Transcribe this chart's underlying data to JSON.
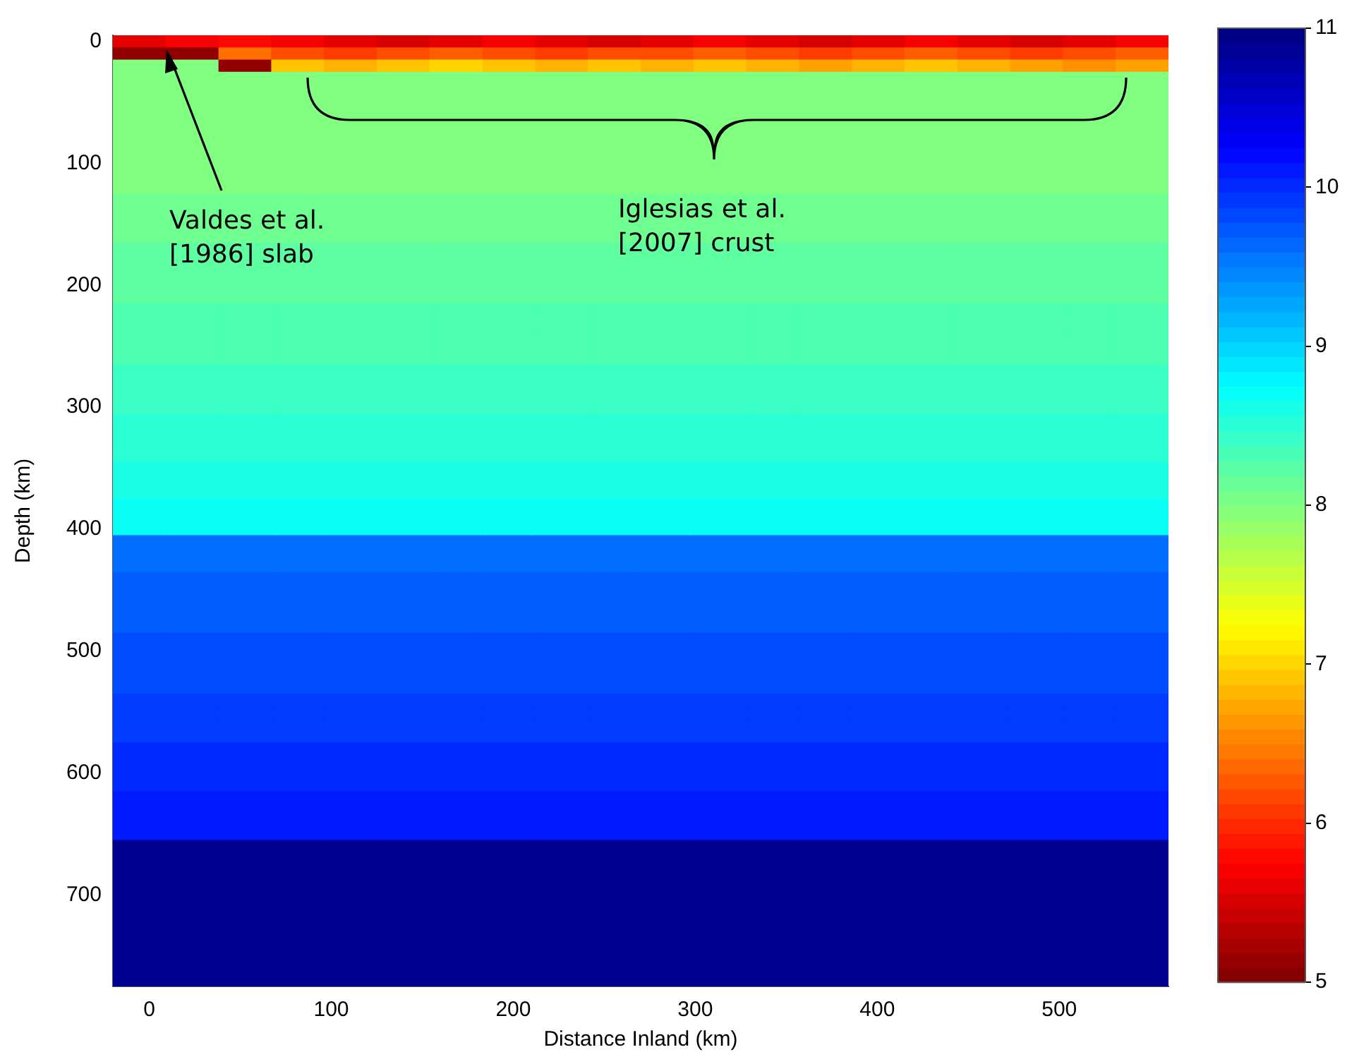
{
  "chart_data": {
    "type": "heatmap",
    "xlabel": "Distance Inland (km)",
    "ylabel": "Depth (km)",
    "x": [
      -5.5,
      23.5,
      52.5,
      81.5,
      110.5,
      139.5,
      168.5,
      197.5,
      226.5,
      255.5,
      284.5,
      313.5,
      342.5,
      371.5,
      400.5,
      429.5,
      458.5,
      487.5,
      516.5,
      545.5
    ],
    "xlim": [
      -20,
      560
    ],
    "xticks": [
      0,
      100,
      200,
      300,
      400,
      500
    ],
    "y_categories": [
      "0",
      null,
      null,
      null,
      null,
      null,
      null,
      null,
      null,
      null,
      "100",
      null,
      null,
      null,
      null,
      null,
      null,
      null,
      null,
      null,
      "200",
      null,
      null,
      null,
      null,
      null,
      null,
      null,
      null,
      null,
      "300",
      null,
      null,
      null,
      null,
      null,
      null,
      null,
      null,
      null,
      "400",
      null,
      null,
      null,
      null,
      null,
      null,
      null,
      null,
      null,
      "500",
      null,
      null,
      null,
      null,
      null,
      null,
      null,
      null,
      null,
      "600",
      null,
      null,
      null,
      null,
      null,
      null,
      null,
      null,
      null,
      "700",
      null,
      null,
      null,
      null,
      null,
      null,
      null
    ],
    "cells": [
      [
        5.6,
        5.7,
        5.8,
        5.7,
        5.6,
        5.5,
        5.6,
        5.7,
        5.6,
        5.5,
        5.6,
        5.7,
        5.6,
        5.5,
        5.6,
        5.7,
        5.6,
        5.5,
        5.6,
        5.7
      ],
      [
        5.1,
        5.1,
        6.4,
        6.2,
        6.1,
        6.2,
        6.3,
        6.2,
        6.1,
        6.2,
        6.2,
        6.3,
        6.2,
        6.1,
        6.2,
        6.3,
        6.2,
        6.1,
        6.2,
        6.3
      ],
      [
        8.0,
        8.0,
        5.1,
        6.9,
        6.8,
        6.9,
        7.0,
        6.9,
        6.8,
        6.9,
        6.8,
        6.9,
        6.8,
        6.7,
        6.8,
        6.9,
        6.8,
        6.7,
        6.6,
        6.7
      ],
      [
        8.0,
        8.0,
        8.0,
        8.0,
        8.0,
        8.0,
        8.0,
        8.0,
        8.0,
        8.0,
        8.0,
        8.0,
        8.0,
        8.0,
        8.0,
        8.0,
        8.0,
        8.0,
        8.0,
        8.0
      ],
      [
        8.0,
        8.0,
        8.0,
        8.0,
        8.0,
        8.0,
        8.0,
        8.0,
        8.0,
        8.0,
        8.0,
        8.0,
        8.0,
        8.0,
        8.0,
        8.0,
        8.0,
        8.0,
        8.0,
        8.0
      ],
      [
        8.0,
        8.0,
        8.0,
        8.0,
        8.0,
        8.0,
        8.0,
        8.0,
        8.0,
        8.0,
        8.0,
        8.0,
        8.0,
        8.0,
        8.0,
        8.0,
        8.0,
        8.0,
        8.0,
        8.0
      ],
      [
        8.0,
        8.0,
        8.0,
        8.0,
        8.0,
        8.0,
        8.0,
        8.0,
        8.0,
        8.0,
        8.0,
        8.0,
        8.0,
        8.0,
        8.0,
        8.0,
        8.0,
        8.0,
        8.0,
        8.0
      ],
      [
        8.0,
        8.0,
        8.0,
        8.0,
        8.0,
        8.0,
        8.0,
        8.0,
        8.0,
        8.0,
        8.0,
        8.0,
        8.0,
        8.0,
        8.0,
        8.0,
        8.0,
        8.0,
        8.0,
        8.0
      ],
      [
        8.0,
        8.0,
        8.0,
        8.0,
        8.0,
        8.0,
        8.0,
        8.0,
        8.0,
        8.0,
        8.0,
        8.0,
        8.0,
        8.0,
        8.0,
        8.0,
        8.0,
        8.0,
        8.0,
        8.0
      ],
      [
        8.0,
        8.0,
        8.0,
        8.0,
        8.0,
        8.0,
        8.0,
        8.0,
        8.0,
        8.0,
        8.0,
        8.0,
        8.0,
        8.0,
        8.0,
        8.0,
        8.0,
        8.0,
        8.0,
        8.0
      ],
      [
        8.0,
        8.0,
        8.0,
        8.0,
        8.0,
        8.0,
        8.0,
        8.0,
        8.0,
        8.0,
        8.0,
        8.0,
        8.0,
        8.0,
        8.0,
        8.0,
        8.0,
        8.0,
        8.0,
        8.0
      ],
      [
        8.0,
        8.0,
        8.0,
        8.0,
        8.0,
        8.0,
        8.0,
        8.0,
        8.0,
        8.0,
        8.0,
        8.0,
        8.0,
        8.0,
        8.0,
        8.0,
        8.0,
        8.0,
        8.0,
        8.0
      ],
      [
        8.0,
        8.0,
        8.0,
        8.0,
        8.0,
        8.0,
        8.0,
        8.0,
        8.0,
        8.0,
        8.0,
        8.0,
        8.0,
        8.0,
        8.0,
        8.0,
        8.0,
        8.0,
        8.0,
        8.0
      ],
      [
        8.1,
        8.1,
        8.1,
        8.1,
        8.1,
        8.1,
        8.1,
        8.1,
        8.1,
        8.1,
        8.1,
        8.1,
        8.1,
        8.1,
        8.1,
        8.1,
        8.1,
        8.1,
        8.1,
        8.1
      ],
      [
        8.1,
        8.1,
        8.1,
        8.1,
        8.1,
        8.1,
        8.1,
        8.1,
        8.1,
        8.1,
        8.1,
        8.1,
        8.1,
        8.1,
        8.1,
        8.1,
        8.1,
        8.1,
        8.1,
        8.1
      ],
      [
        8.1,
        8.1,
        8.1,
        8.1,
        8.1,
        8.1,
        8.1,
        8.1,
        8.1,
        8.1,
        8.1,
        8.1,
        8.1,
        8.1,
        8.1,
        8.1,
        8.1,
        8.1,
        8.1,
        8.1
      ],
      [
        8.1,
        8.1,
        8.1,
        8.1,
        8.1,
        8.1,
        8.1,
        8.1,
        8.1,
        8.1,
        8.1,
        8.1,
        8.1,
        8.1,
        8.1,
        8.1,
        8.1,
        8.1,
        8.1,
        8.1
      ],
      [
        8.2,
        8.2,
        8.2,
        8.2,
        8.2,
        8.2,
        8.2,
        8.2,
        8.2,
        8.2,
        8.2,
        8.2,
        8.2,
        8.2,
        8.2,
        8.2,
        8.2,
        8.2,
        8.2,
        8.2
      ],
      [
        8.2,
        8.2,
        8.2,
        8.2,
        8.2,
        8.2,
        8.2,
        8.2,
        8.2,
        8.2,
        8.2,
        8.2,
        8.2,
        8.2,
        8.2,
        8.2,
        8.2,
        8.2,
        8.2,
        8.2
      ],
      [
        8.2,
        8.2,
        8.2,
        8.2,
        8.2,
        8.2,
        8.2,
        8.2,
        8.2,
        8.2,
        8.2,
        8.2,
        8.2,
        8.2,
        8.2,
        8.2,
        8.2,
        8.2,
        8.2,
        8.2
      ],
      [
        8.2,
        8.2,
        8.2,
        8.2,
        8.2,
        8.2,
        8.2,
        8.2,
        8.2,
        8.2,
        8.2,
        8.2,
        8.2,
        8.2,
        8.2,
        8.2,
        8.2,
        8.2,
        8.2,
        8.2
      ],
      [
        8.2,
        8.2,
        8.2,
        8.2,
        8.2,
        8.2,
        8.2,
        8.2,
        8.2,
        8.2,
        8.2,
        8.2,
        8.2,
        8.2,
        8.2,
        8.2,
        8.2,
        8.2,
        8.2,
        8.2
      ],
      [
        8.3,
        8.3,
        8.3,
        8.3,
        8.3,
        8.3,
        8.3,
        8.3,
        8.3,
        8.3,
        8.3,
        8.3,
        8.3,
        8.3,
        8.3,
        8.3,
        8.3,
        8.3,
        8.3,
        8.3
      ],
      [
        8.3,
        8.3,
        8.3,
        8.3,
        8.3,
        8.3,
        8.3,
        8.3,
        8.3,
        8.3,
        8.3,
        8.3,
        8.3,
        8.3,
        8.3,
        8.3,
        8.3,
        8.3,
        8.3,
        8.3
      ],
      [
        8.3,
        8.3,
        8.3,
        8.3,
        8.3,
        8.3,
        8.3,
        8.3,
        8.3,
        8.3,
        8.3,
        8.3,
        8.3,
        8.3,
        8.3,
        8.3,
        8.3,
        8.3,
        8.3,
        8.3
      ],
      [
        8.3,
        8.3,
        8.3,
        8.3,
        8.3,
        8.3,
        8.3,
        8.3,
        8.3,
        8.3,
        8.3,
        8.3,
        8.3,
        8.3,
        8.3,
        8.3,
        8.3,
        8.3,
        8.3,
        8.3
      ],
      [
        8.3,
        8.3,
        8.3,
        8.3,
        8.3,
        8.3,
        8.3,
        8.3,
        8.3,
        8.3,
        8.3,
        8.3,
        8.3,
        8.3,
        8.3,
        8.3,
        8.3,
        8.3,
        8.3,
        8.3
      ],
      [
        8.4,
        8.4,
        8.4,
        8.4,
        8.4,
        8.4,
        8.4,
        8.4,
        8.4,
        8.4,
        8.4,
        8.4,
        8.4,
        8.4,
        8.4,
        8.4,
        8.4,
        8.4,
        8.4,
        8.4
      ],
      [
        8.4,
        8.4,
        8.4,
        8.4,
        8.4,
        8.4,
        8.4,
        8.4,
        8.4,
        8.4,
        8.4,
        8.4,
        8.4,
        8.4,
        8.4,
        8.4,
        8.4,
        8.4,
        8.4,
        8.4
      ],
      [
        8.4,
        8.4,
        8.4,
        8.4,
        8.4,
        8.4,
        8.4,
        8.4,
        8.4,
        8.4,
        8.4,
        8.4,
        8.4,
        8.4,
        8.4,
        8.4,
        8.4,
        8.4,
        8.4,
        8.4
      ],
      [
        8.4,
        8.4,
        8.4,
        8.4,
        8.4,
        8.4,
        8.4,
        8.4,
        8.4,
        8.4,
        8.4,
        8.4,
        8.4,
        8.4,
        8.4,
        8.4,
        8.4,
        8.4,
        8.4,
        8.4
      ],
      [
        8.5,
        8.5,
        8.5,
        8.5,
        8.5,
        8.5,
        8.5,
        8.5,
        8.5,
        8.5,
        8.5,
        8.5,
        8.5,
        8.5,
        8.5,
        8.5,
        8.5,
        8.5,
        8.5,
        8.5
      ],
      [
        8.5,
        8.5,
        8.5,
        8.5,
        8.5,
        8.5,
        8.5,
        8.5,
        8.5,
        8.5,
        8.5,
        8.5,
        8.5,
        8.5,
        8.5,
        8.5,
        8.5,
        8.5,
        8.5,
        8.5
      ],
      [
        8.5,
        8.5,
        8.5,
        8.5,
        8.5,
        8.5,
        8.5,
        8.5,
        8.5,
        8.5,
        8.5,
        8.5,
        8.5,
        8.5,
        8.5,
        8.5,
        8.5,
        8.5,
        8.5,
        8.5
      ],
      [
        8.5,
        8.5,
        8.5,
        8.5,
        8.5,
        8.5,
        8.5,
        8.5,
        8.5,
        8.5,
        8.5,
        8.5,
        8.5,
        8.5,
        8.5,
        8.5,
        8.5,
        8.5,
        8.5,
        8.5
      ],
      [
        8.6,
        8.6,
        8.6,
        8.6,
        8.6,
        8.6,
        8.6,
        8.6,
        8.6,
        8.6,
        8.6,
        8.6,
        8.6,
        8.6,
        8.6,
        8.6,
        8.6,
        8.6,
        8.6,
        8.6
      ],
      [
        8.6,
        8.6,
        8.6,
        8.6,
        8.6,
        8.6,
        8.6,
        8.6,
        8.6,
        8.6,
        8.6,
        8.6,
        8.6,
        8.6,
        8.6,
        8.6,
        8.6,
        8.6,
        8.6,
        8.6
      ],
      [
        8.6,
        8.6,
        8.6,
        8.6,
        8.6,
        8.6,
        8.6,
        8.6,
        8.6,
        8.6,
        8.6,
        8.6,
        8.6,
        8.6,
        8.6,
        8.6,
        8.6,
        8.6,
        8.6,
        8.6
      ],
      [
        8.7,
        8.7,
        8.7,
        8.7,
        8.7,
        8.7,
        8.7,
        8.7,
        8.7,
        8.7,
        8.7,
        8.7,
        8.7,
        8.7,
        8.7,
        8.7,
        8.7,
        8.7,
        8.7,
        8.7
      ],
      [
        8.7,
        8.7,
        8.7,
        8.7,
        8.7,
        8.7,
        8.7,
        8.7,
        8.7,
        8.7,
        8.7,
        8.7,
        8.7,
        8.7,
        8.7,
        8.7,
        8.7,
        8.7,
        8.7,
        8.7
      ],
      [
        8.7,
        8.7,
        8.7,
        8.7,
        8.7,
        8.7,
        8.7,
        8.7,
        8.7,
        8.7,
        8.7,
        8.7,
        8.7,
        8.7,
        8.7,
        8.7,
        8.7,
        8.7,
        8.7,
        8.7
      ],
      [
        9.6,
        9.6,
        9.6,
        9.6,
        9.6,
        9.6,
        9.6,
        9.6,
        9.6,
        9.6,
        9.6,
        9.6,
        9.6,
        9.6,
        9.6,
        9.6,
        9.6,
        9.6,
        9.6,
        9.6
      ],
      [
        9.6,
        9.6,
        9.6,
        9.6,
        9.6,
        9.6,
        9.6,
        9.6,
        9.6,
        9.6,
        9.6,
        9.6,
        9.6,
        9.6,
        9.6,
        9.6,
        9.6,
        9.6,
        9.6,
        9.6
      ],
      [
        9.6,
        9.6,
        9.6,
        9.6,
        9.6,
        9.6,
        9.6,
        9.6,
        9.6,
        9.6,
        9.6,
        9.6,
        9.6,
        9.6,
        9.6,
        9.6,
        9.6,
        9.6,
        9.6,
        9.6
      ],
      [
        9.7,
        9.7,
        9.7,
        9.7,
        9.7,
        9.7,
        9.7,
        9.7,
        9.7,
        9.7,
        9.7,
        9.7,
        9.7,
        9.7,
        9.7,
        9.7,
        9.7,
        9.7,
        9.7,
        9.7
      ],
      [
        9.7,
        9.7,
        9.7,
        9.7,
        9.7,
        9.7,
        9.7,
        9.7,
        9.7,
        9.7,
        9.7,
        9.7,
        9.7,
        9.7,
        9.7,
        9.7,
        9.7,
        9.7,
        9.7,
        9.7
      ],
      [
        9.7,
        9.7,
        9.7,
        9.7,
        9.7,
        9.7,
        9.7,
        9.7,
        9.7,
        9.7,
        9.7,
        9.7,
        9.7,
        9.7,
        9.7,
        9.7,
        9.7,
        9.7,
        9.7,
        9.7
      ],
      [
        9.7,
        9.7,
        9.7,
        9.7,
        9.7,
        9.7,
        9.7,
        9.7,
        9.7,
        9.7,
        9.7,
        9.7,
        9.7,
        9.7,
        9.7,
        9.7,
        9.7,
        9.7,
        9.7,
        9.7
      ],
      [
        9.7,
        9.7,
        9.7,
        9.7,
        9.7,
        9.7,
        9.7,
        9.7,
        9.7,
        9.7,
        9.7,
        9.7,
        9.7,
        9.7,
        9.7,
        9.7,
        9.7,
        9.7,
        9.7,
        9.7
      ],
      [
        9.8,
        9.8,
        9.8,
        9.8,
        9.8,
        9.8,
        9.8,
        9.8,
        9.8,
        9.8,
        9.8,
        9.8,
        9.8,
        9.8,
        9.8,
        9.8,
        9.8,
        9.8,
        9.8,
        9.8
      ],
      [
        9.8,
        9.8,
        9.8,
        9.8,
        9.8,
        9.8,
        9.8,
        9.8,
        9.8,
        9.8,
        9.8,
        9.8,
        9.8,
        9.8,
        9.8,
        9.8,
        9.8,
        9.8,
        9.8,
        9.8
      ],
      [
        9.8,
        9.8,
        9.8,
        9.8,
        9.8,
        9.8,
        9.8,
        9.8,
        9.8,
        9.8,
        9.8,
        9.8,
        9.8,
        9.8,
        9.8,
        9.8,
        9.8,
        9.8,
        9.8,
        9.8
      ],
      [
        9.8,
        9.8,
        9.8,
        9.8,
        9.8,
        9.8,
        9.8,
        9.8,
        9.8,
        9.8,
        9.8,
        9.8,
        9.8,
        9.8,
        9.8,
        9.8,
        9.8,
        9.8,
        9.8,
        9.8
      ],
      [
        9.8,
        9.8,
        9.8,
        9.8,
        9.8,
        9.8,
        9.8,
        9.8,
        9.8,
        9.8,
        9.8,
        9.8,
        9.8,
        9.8,
        9.8,
        9.8,
        9.8,
        9.8,
        9.8,
        9.8
      ],
      [
        9.9,
        9.9,
        9.9,
        9.9,
        9.9,
        9.9,
        9.9,
        9.9,
        9.9,
        9.9,
        9.9,
        9.9,
        9.9,
        9.9,
        9.9,
        9.9,
        9.9,
        9.9,
        9.9,
        9.9
      ],
      [
        9.9,
        9.9,
        9.9,
        9.9,
        9.9,
        9.9,
        9.9,
        9.9,
        9.9,
        9.9,
        9.9,
        9.9,
        9.9,
        9.9,
        9.9,
        9.9,
        9.9,
        9.9,
        9.9,
        9.9
      ],
      [
        9.9,
        9.9,
        9.9,
        9.9,
        9.9,
        9.9,
        9.9,
        9.9,
        9.9,
        9.9,
        9.9,
        9.9,
        9.9,
        9.9,
        9.9,
        9.9,
        9.9,
        9.9,
        9.9,
        9.9
      ],
      [
        9.9,
        9.9,
        9.9,
        9.9,
        9.9,
        9.9,
        9.9,
        9.9,
        9.9,
        9.9,
        9.9,
        9.9,
        9.9,
        9.9,
        9.9,
        9.9,
        9.9,
        9.9,
        9.9,
        9.9
      ],
      [
        10.0,
        10.0,
        10.0,
        10.0,
        10.0,
        10.0,
        10.0,
        10.0,
        10.0,
        10.0,
        10.0,
        10.0,
        10.0,
        10.0,
        10.0,
        10.0,
        10.0,
        10.0,
        10.0,
        10.0
      ],
      [
        10.0,
        10.0,
        10.0,
        10.0,
        10.0,
        10.0,
        10.0,
        10.0,
        10.0,
        10.0,
        10.0,
        10.0,
        10.0,
        10.0,
        10.0,
        10.0,
        10.0,
        10.0,
        10.0,
        10.0
      ],
      [
        10.0,
        10.0,
        10.0,
        10.0,
        10.0,
        10.0,
        10.0,
        10.0,
        10.0,
        10.0,
        10.0,
        10.0,
        10.0,
        10.0,
        10.0,
        10.0,
        10.0,
        10.0,
        10.0,
        10.0
      ],
      [
        10.0,
        10.0,
        10.0,
        10.0,
        10.0,
        10.0,
        10.0,
        10.0,
        10.0,
        10.0,
        10.0,
        10.0,
        10.0,
        10.0,
        10.0,
        10.0,
        10.0,
        10.0,
        10.0,
        10.0
      ],
      [
        10.1,
        10.1,
        10.1,
        10.1,
        10.1,
        10.1,
        10.1,
        10.1,
        10.1,
        10.1,
        10.1,
        10.1,
        10.1,
        10.1,
        10.1,
        10.1,
        10.1,
        10.1,
        10.1,
        10.1
      ],
      [
        10.1,
        10.1,
        10.1,
        10.1,
        10.1,
        10.1,
        10.1,
        10.1,
        10.1,
        10.1,
        10.1,
        10.1,
        10.1,
        10.1,
        10.1,
        10.1,
        10.1,
        10.1,
        10.1,
        10.1
      ],
      [
        10.1,
        10.1,
        10.1,
        10.1,
        10.1,
        10.1,
        10.1,
        10.1,
        10.1,
        10.1,
        10.1,
        10.1,
        10.1,
        10.1,
        10.1,
        10.1,
        10.1,
        10.1,
        10.1,
        10.1
      ],
      [
        10.1,
        10.1,
        10.1,
        10.1,
        10.1,
        10.1,
        10.1,
        10.1,
        10.1,
        10.1,
        10.1,
        10.1,
        10.1,
        10.1,
        10.1,
        10.1,
        10.1,
        10.1,
        10.1,
        10.1
      ],
      [
        10.9,
        10.9,
        10.9,
        10.9,
        10.9,
        10.9,
        10.9,
        10.9,
        10.9,
        10.9,
        10.9,
        10.9,
        10.9,
        10.9,
        10.9,
        10.9,
        10.9,
        10.9,
        10.9,
        10.9
      ],
      [
        10.9,
        10.9,
        10.9,
        10.9,
        10.9,
        10.9,
        10.9,
        10.9,
        10.9,
        10.9,
        10.9,
        10.9,
        10.9,
        10.9,
        10.9,
        10.9,
        10.9,
        10.9,
        10.9,
        10.9
      ],
      [
        10.9,
        10.9,
        10.9,
        10.9,
        10.9,
        10.9,
        10.9,
        10.9,
        10.9,
        10.9,
        10.9,
        10.9,
        10.9,
        10.9,
        10.9,
        10.9,
        10.9,
        10.9,
        10.9,
        10.9
      ],
      [
        10.9,
        10.9,
        10.9,
        10.9,
        10.9,
        10.9,
        10.9,
        10.9,
        10.9,
        10.9,
        10.9,
        10.9,
        10.9,
        10.9,
        10.9,
        10.9,
        10.9,
        10.9,
        10.9,
        10.9
      ],
      [
        10.9,
        10.9,
        10.9,
        10.9,
        10.9,
        10.9,
        10.9,
        10.9,
        10.9,
        10.9,
        10.9,
        10.9,
        10.9,
        10.9,
        10.9,
        10.9,
        10.9,
        10.9,
        10.9,
        10.9
      ],
      [
        10.9,
        10.9,
        10.9,
        10.9,
        10.9,
        10.9,
        10.9,
        10.9,
        10.9,
        10.9,
        10.9,
        10.9,
        10.9,
        10.9,
        10.9,
        10.9,
        10.9,
        10.9,
        10.9,
        10.9
      ],
      [
        10.9,
        10.9,
        10.9,
        10.9,
        10.9,
        10.9,
        10.9,
        10.9,
        10.9,
        10.9,
        10.9,
        10.9,
        10.9,
        10.9,
        10.9,
        10.9,
        10.9,
        10.9,
        10.9,
        10.9
      ],
      [
        10.9,
        10.9,
        10.9,
        10.9,
        10.9,
        10.9,
        10.9,
        10.9,
        10.9,
        10.9,
        10.9,
        10.9,
        10.9,
        10.9,
        10.9,
        10.9,
        10.9,
        10.9,
        10.9,
        10.9
      ],
      [
        10.9,
        10.9,
        10.9,
        10.9,
        10.9,
        10.9,
        10.9,
        10.9,
        10.9,
        10.9,
        10.9,
        10.9,
        10.9,
        10.9,
        10.9,
        10.9,
        10.9,
        10.9,
        10.9,
        10.9
      ],
      [
        10.9,
        10.9,
        10.9,
        10.9,
        10.9,
        10.9,
        10.9,
        10.9,
        10.9,
        10.9,
        10.9,
        10.9,
        10.9,
        10.9,
        10.9,
        10.9,
        10.9,
        10.9,
        10.9,
        10.9
      ],
      [
        10.9,
        10.9,
        10.9,
        10.9,
        10.9,
        10.9,
        10.9,
        10.9,
        10.9,
        10.9,
        10.9,
        10.9,
        10.9,
        10.9,
        10.9,
        10.9,
        10.9,
        10.9,
        10.9,
        10.9
      ],
      [
        10.9,
        10.9,
        10.9,
        10.9,
        10.9,
        10.9,
        10.9,
        10.9,
        10.9,
        10.9,
        10.9,
        10.9,
        10.9,
        10.9,
        10.9,
        10.9,
        10.9,
        10.9,
        10.9,
        10.9
      ]
    ],
    "clim": [
      5,
      11
    ],
    "cticks": [
      5,
      6,
      7,
      8,
      9,
      10,
      11
    ],
    "annotations": [
      "Valdes et al. [1986] slab",
      "Iglesias et al. [2007] crust"
    ]
  }
}
